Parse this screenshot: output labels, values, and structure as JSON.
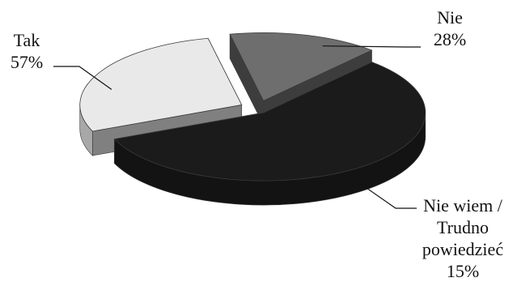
{
  "chart_data": {
    "type": "pie",
    "style": "3d-exploded",
    "slices": [
      {
        "category": "Tak",
        "percent_label": "57%",
        "value": 57,
        "color": "#1b1b1b"
      },
      {
        "category": "Nie",
        "percent_label": "28%",
        "value": 28,
        "color": "#e9e9e9"
      },
      {
        "category_lines": [
          "Nie wiem /",
          "Trudno",
          "powiedzieć"
        ],
        "percent_label": "15%",
        "value": 15,
        "color": "#6e6e6e"
      }
    ]
  }
}
